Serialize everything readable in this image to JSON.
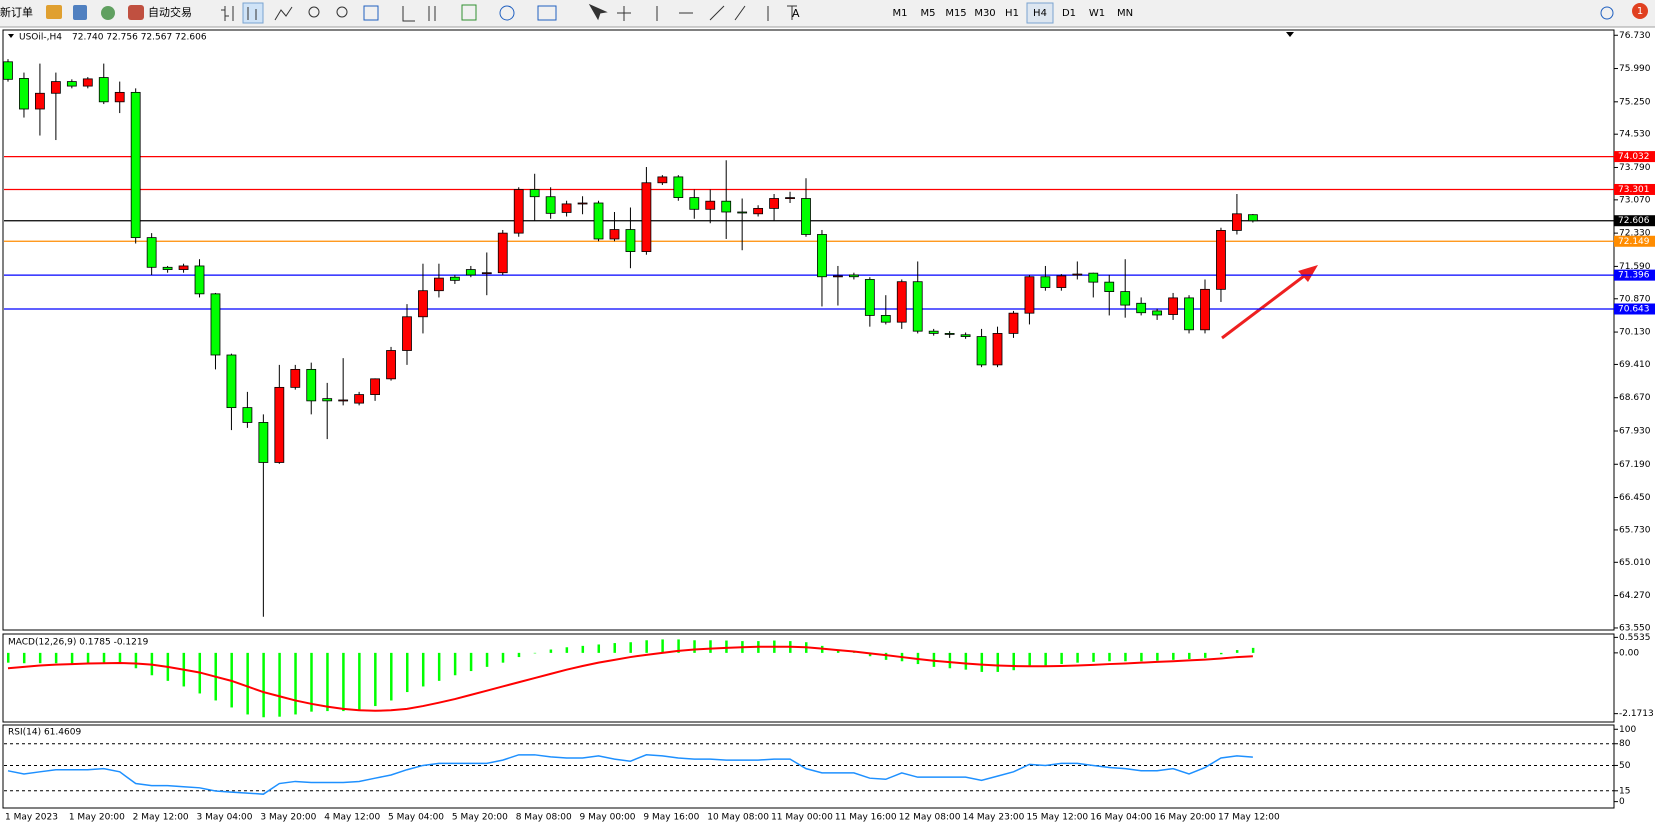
{
  "toolbar": {
    "new_order": "新订单",
    "auto_trade": "自动交易",
    "timeframes": [
      "M1",
      "M5",
      "M15",
      "M30",
      "H1",
      "H4",
      "D1",
      "W1",
      "MN"
    ],
    "active_timeframe": "H4",
    "notifications": "1"
  },
  "chart_data": [
    {
      "type": "candlestick",
      "title": "USOil-,H4",
      "ohlc_text": "72.740 72.756 72.567 72.606",
      "categories": [
        "1 May 2023",
        null,
        null,
        null,
        "1 May 20:00",
        null,
        null,
        null,
        "2 May 12:00",
        null,
        null,
        null,
        "3 May 04:00",
        null,
        null,
        null,
        "3 May 20:00",
        null,
        null,
        null,
        "4 May 12:00",
        null,
        null,
        null,
        "5 May 04:00",
        null,
        null,
        null,
        "5 May 20:00",
        null,
        null,
        null,
        "8 May 08:00",
        null,
        null,
        null,
        "9 May 00:00",
        null,
        null,
        null,
        "9 May 16:00",
        null,
        null,
        null,
        "10 May 08:00",
        null,
        null,
        null,
        "11 May 00:00",
        null,
        null,
        null,
        "11 May 16:00",
        null,
        null,
        null,
        "12 May 08:00",
        null,
        null,
        null,
        "14 May 23:00",
        null,
        null,
        null,
        "15 May 12:00",
        null,
        null,
        null,
        "16 May 04:00",
        null,
        null,
        null,
        "16 May 20:00",
        null,
        null,
        null,
        "17 May 12:00",
        null,
        null
      ],
      "open": [
        76.14,
        75.77,
        75.09,
        75.44,
        75.7,
        75.6,
        75.79,
        75.25,
        75.46,
        72.23,
        71.57,
        71.52,
        71.6,
        70.98,
        69.62,
        68.45,
        68.12,
        67.23,
        68.9,
        69.3,
        68.65,
        68.6,
        68.55,
        68.74,
        69.09,
        69.72,
        70.47,
        71.05,
        71.35,
        71.52,
        71.45,
        71.45,
        72.33,
        73.3,
        73.14,
        72.79,
        72.98,
        73.0,
        72.2,
        72.41,
        71.92,
        73.45,
        73.58,
        73.12,
        72.86,
        73.04,
        72.8,
        72.76,
        72.88,
        73.1,
        73.1,
        72.3,
        71.36,
        71.4,
        71.3,
        70.5,
        70.35,
        71.25,
        70.15,
        70.1,
        70.07,
        70.03,
        69.4,
        70.1,
        70.55,
        71.36,
        71.12,
        71.4,
        71.44,
        71.24,
        71.03,
        70.77,
        70.6,
        70.52,
        70.89,
        70.18,
        71.08,
        72.39,
        72.74
      ],
      "high": [
        76.2,
        75.9,
        76.1,
        75.9,
        75.75,
        75.8,
        76.1,
        75.7,
        75.55,
        72.33,
        71.6,
        71.65,
        71.75,
        71.0,
        69.65,
        68.8,
        68.3,
        69.4,
        69.4,
        69.45,
        69.0,
        69.55,
        68.8,
        69.1,
        69.8,
        70.75,
        71.65,
        71.65,
        71.4,
        71.6,
        71.9,
        72.4,
        73.35,
        73.65,
        73.35,
        73.05,
        73.15,
        73.05,
        72.8,
        72.9,
        73.8,
        73.62,
        73.62,
        73.3,
        73.3,
        73.95,
        73.1,
        72.95,
        73.2,
        73.25,
        73.55,
        72.4,
        71.6,
        71.45,
        71.35,
        70.95,
        71.3,
        71.7,
        70.2,
        70.15,
        70.12,
        70.2,
        70.25,
        70.6,
        71.4,
        71.6,
        71.42,
        71.7,
        71.45,
        71.4,
        71.75,
        70.9,
        70.65,
        71.0,
        70.95,
        71.3,
        72.45,
        73.2,
        72.756
      ],
      "low": [
        75.7,
        74.9,
        74.5,
        74.4,
        75.55,
        75.55,
        75.2,
        75.0,
        72.1,
        71.4,
        71.45,
        71.45,
        70.9,
        69.3,
        67.95,
        68.0,
        63.8,
        67.2,
        68.85,
        68.3,
        67.75,
        68.5,
        68.5,
        68.6,
        69.05,
        69.4,
        70.1,
        70.9,
        71.2,
        71.35,
        70.95,
        71.4,
        72.25,
        72.6,
        72.65,
        72.7,
        72.75,
        72.15,
        72.15,
        71.55,
        71.85,
        73.4,
        73.05,
        72.65,
        72.55,
        72.2,
        71.95,
        72.7,
        72.6,
        73.0,
        72.25,
        70.7,
        70.72,
        71.3,
        70.25,
        70.3,
        70.2,
        70.1,
        70.05,
        70.0,
        69.98,
        69.35,
        69.35,
        70.0,
        70.3,
        71.05,
        71.05,
        71.3,
        70.9,
        70.5,
        70.45,
        70.5,
        70.4,
        70.4,
        70.1,
        70.1,
        70.8,
        72.3,
        72.567
      ],
      "close": [
        75.75,
        75.09,
        75.44,
        75.7,
        75.6,
        75.76,
        75.25,
        75.46,
        72.23,
        71.57,
        71.52,
        71.6,
        70.98,
        69.62,
        68.45,
        68.12,
        67.23,
        68.9,
        69.3,
        68.6,
        68.6,
        68.62,
        68.74,
        69.09,
        69.72,
        70.47,
        71.05,
        71.33,
        71.28,
        71.4,
        71.45,
        72.33,
        73.3,
        73.14,
        72.77,
        72.98,
        73.0,
        72.2,
        72.41,
        71.92,
        73.45,
        73.58,
        73.12,
        72.86,
        73.04,
        72.8,
        72.78,
        72.88,
        73.1,
        73.12,
        72.3,
        71.36,
        71.38,
        71.36,
        70.5,
        70.35,
        71.25,
        70.15,
        70.1,
        70.08,
        70.03,
        69.4,
        70.1,
        70.55,
        71.36,
        71.12,
        71.38,
        71.42,
        71.24,
        71.03,
        70.73,
        70.56,
        70.51,
        70.89,
        70.18,
        71.08,
        72.39,
        72.76,
        72.606
      ],
      "up_color": "#ff0000",
      "down_color": "#00ff00",
      "ylim": [
        63.527,
        76.847
      ],
      "yticks": [
        {
          "value": 76.73,
          "label": "76.730"
        },
        {
          "value": 75.99,
          "label": "75.990"
        },
        {
          "value": 75.25,
          "label": "75.250"
        },
        {
          "value": 74.53,
          "label": "74.530"
        },
        {
          "value": 73.79,
          "label": "73.790"
        },
        {
          "value": 73.07,
          "label": "73.070"
        },
        {
          "value": 72.33,
          "label": "72.330"
        },
        {
          "value": 71.59,
          "label": "71.590"
        },
        {
          "value": 70.87,
          "label": "70.870"
        },
        {
          "value": 70.13,
          "label": "70.130"
        },
        {
          "value": 69.41,
          "label": "69.410"
        },
        {
          "value": 68.67,
          "label": "68.670"
        },
        {
          "value": 67.93,
          "label": "67.930"
        },
        {
          "value": 67.19,
          "label": "67.190"
        },
        {
          "value": 66.45,
          "label": "66.450"
        },
        {
          "value": 65.73,
          "label": "65.730"
        },
        {
          "value": 65.01,
          "label": "65.010"
        },
        {
          "value": 64.27,
          "label": "64.270"
        },
        {
          "value": 63.55,
          "label": "63.550"
        }
      ],
      "levels": [
        {
          "value": 74.032,
          "color": "#ff0000"
        },
        {
          "value": 73.301,
          "color": "#ff0000"
        },
        {
          "value": 72.606,
          "color": "#000000"
        },
        {
          "value": 72.149,
          "color": "#ff8c00"
        },
        {
          "value": 71.396,
          "color": "#0000ff"
        },
        {
          "value": 70.643,
          "color": "#0000ff"
        }
      ],
      "grid": false
    },
    {
      "type": "macd",
      "title": "MACD(12,26,9) 0.1785 -0.1219",
      "series": [
        {
          "type": "bar",
          "color": "#00ff00",
          "values": [
            -0.35,
            -0.37,
            -0.37,
            -0.37,
            -0.38,
            -0.36,
            -0.35,
            -0.33,
            -0.55,
            -0.8,
            -1.0,
            -1.2,
            -1.45,
            -1.7,
            -1.95,
            -2.2,
            -2.3,
            -2.28,
            -2.2,
            -2.1,
            -2.08,
            -2.08,
            -2.05,
            -1.9,
            -1.7,
            -1.4,
            -1.2,
            -1.0,
            -0.8,
            -0.65,
            -0.5,
            -0.35,
            -0.15,
            0.0,
            0.12,
            0.2,
            0.25,
            0.3,
            0.35,
            0.38,
            0.45,
            0.48,
            0.48,
            0.45,
            0.45,
            0.44,
            0.42,
            0.42,
            0.44,
            0.42,
            0.38,
            0.25,
            0.12,
            0.02,
            -0.12,
            -0.25,
            -0.3,
            -0.4,
            -0.5,
            -0.55,
            -0.6,
            -0.68,
            -0.68,
            -0.62,
            -0.5,
            -0.45,
            -0.4,
            -0.35,
            -0.32,
            -0.3,
            -0.3,
            -0.3,
            -0.28,
            -0.25,
            -0.22,
            -0.18,
            -0.05,
            0.1,
            0.1785
          ]
        },
        {
          "type": "line",
          "color": "#ff0000",
          "values": [
            -0.55,
            -0.5,
            -0.45,
            -0.42,
            -0.4,
            -0.38,
            -0.37,
            -0.36,
            -0.38,
            -0.42,
            -0.5,
            -0.6,
            -0.7,
            -0.85,
            -1.0,
            -1.2,
            -1.4,
            -1.55,
            -1.7,
            -1.82,
            -1.92,
            -2.0,
            -2.05,
            -2.07,
            -2.05,
            -2.0,
            -1.9,
            -1.78,
            -1.65,
            -1.5,
            -1.35,
            -1.2,
            -1.05,
            -0.9,
            -0.75,
            -0.6,
            -0.47,
            -0.35,
            -0.25,
            -0.15,
            -0.07,
            0.0,
            0.07,
            0.12,
            0.15,
            0.18,
            0.2,
            0.22,
            0.22,
            0.22,
            0.2,
            0.15,
            0.1,
            0.05,
            -0.02,
            -0.08,
            -0.15,
            -0.22,
            -0.28,
            -0.33,
            -0.38,
            -0.42,
            -0.45,
            -0.47,
            -0.48,
            -0.48,
            -0.47,
            -0.45,
            -0.43,
            -0.4,
            -0.38,
            -0.35,
            -0.32,
            -0.3,
            -0.27,
            -0.24,
            -0.2,
            -0.15,
            -0.1219
          ]
        }
      ],
      "ylim": [
        -2.434,
        0.674
      ],
      "yticks": [
        0.5535,
        {
          "value": 0,
          "label": "0.00"
        },
        -2.1713
      ]
    },
    {
      "type": "line",
      "title": "RSI(14) 61.4609",
      "color": "#1e90ff",
      "values": [
        42.6,
        38.2,
        41.2,
        44.1,
        44.1,
        44.1,
        45.6,
        41.2,
        25.0,
        22.1,
        22.1,
        20.6,
        19.1,
        14.7,
        13.2,
        11.8,
        10.3,
        25.0,
        27.9,
        26.5,
        26.5,
        26.5,
        27.9,
        32.4,
        36.8,
        44.1,
        50.0,
        52.9,
        52.9,
        52.9,
        52.9,
        57.4,
        64.7,
        64.7,
        61.8,
        60.3,
        60.3,
        63.2,
        58.8,
        55.9,
        64.7,
        63.2,
        60.3,
        58.8,
        58.8,
        57.4,
        57.4,
        57.4,
        58.8,
        58.8,
        45.6,
        39.7,
        39.7,
        39.7,
        32.4,
        30.9,
        39.7,
        33.8,
        33.8,
        33.8,
        33.8,
        29.4,
        35.3,
        41.2,
        51.5,
        50.0,
        52.9,
        52.9,
        50.0,
        47.1,
        45.6,
        42.6,
        42.6,
        45.6,
        38.2,
        47.1,
        60.3,
        63.2,
        61.46
      ],
      "ylim": [
        -8.8,
        105.9
      ],
      "yticks": [
        100,
        80,
        50,
        15,
        0
      ],
      "levels": [
        80,
        50,
        15
      ]
    }
  ]
}
